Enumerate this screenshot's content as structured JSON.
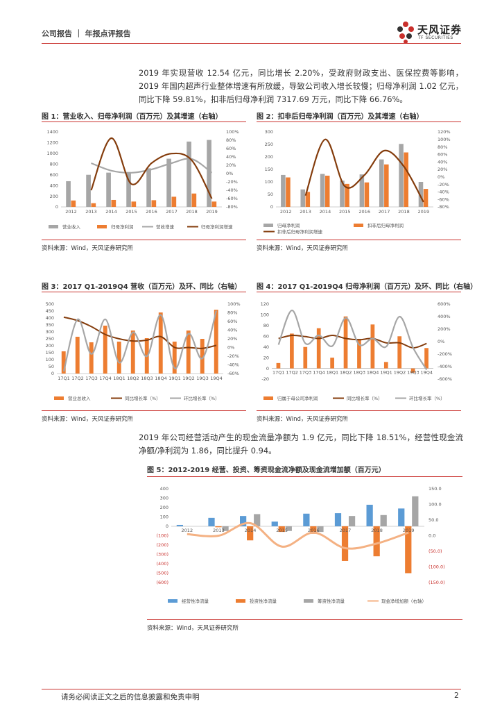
{
  "header": {
    "title": "公司报告 ｜ 年报点评报告",
    "logo_cn": "天风证券",
    "logo_en": "TF SECURITIES"
  },
  "paragraphs": {
    "p1": "2019 年实现营收 12.54 亿元，同比增长 2.20%，受政府财政支出、医保控费等影响，2019 年国内超声行业整体增速有所放缓，导致公司收入增长较慢；归母净利润 1.02 亿元，同比下降 59.81%，扣非后归母净利润 7317.69 万元，同比下降 66.76%。",
    "p2": "2019 年公司经营活动产生的现金流量净额为 1.9 亿元，同比下降 18.51%，经营性现金流净额/净利润为 1.86，同比提升 0.94。"
  },
  "figures": {
    "fig1_title": "图 1：营业收入、归母净利润（百万元）及其增速（右轴）",
    "fig2_title": "图 2：扣非后归母净利润（百万元）及其增速（右轴）",
    "fig3_title": "图 3：2017 Q1-2019Q4 营收（百万元）及环、同比（右轴）",
    "fig4_title": "图 4：2017 Q1-2019Q4 归母净利润（百万元）及环、同比（右轴）",
    "fig5_title": "图 5：2012-2019 经营、投资、筹资现金流净额及现金流增加额（百万元）",
    "source": "资料来源：Wind，天风证券研究所"
  },
  "footer": {
    "disclaimer": "请务必阅读正文之后的信息披露和免责申明",
    "page": "2"
  },
  "colors": {
    "gray": "#a6a6a6",
    "orange": "#ed7d31",
    "brown": "#843c0c",
    "blue": "#5b9bd5",
    "peach": "#f4b183",
    "red": "#c9302c"
  },
  "chart_data": [
    {
      "id": "fig1",
      "type": "bar",
      "categories": [
        "2012",
        "2013",
        "2014",
        "2015",
        "2016",
        "2017",
        "2018",
        "2019"
      ],
      "ylim": [
        0,
        1400
      ],
      "y2lim": [
        -80,
        100
      ],
      "yticks": [
        "0",
        "200",
        "400",
        "600",
        "800",
        "1000",
        "1200",
        "1400"
      ],
      "y2ticks": [
        "-80%",
        "-60%",
        "-40%",
        "-20%",
        "0%",
        "20%",
        "40%",
        "60%",
        "80%",
        "100%"
      ],
      "series": [
        {
          "name": "营业收入",
          "kind": "bar",
          "values": [
            480,
            600,
            640,
            650,
            720,
            900,
            1220,
            1250
          ]
        },
        {
          "name": "归母净利润",
          "kind": "bar",
          "values": [
            120,
            70,
            130,
            100,
            125,
            190,
            250,
            100
          ]
        },
        {
          "name": "营收增速",
          "kind": "line",
          "axis": "right",
          "values": [
            null,
            25,
            7,
            2,
            10,
            25,
            35,
            2
          ]
        },
        {
          "name": "归母净利润增速",
          "kind": "line",
          "axis": "right",
          "values": [
            null,
            -40,
            85,
            -25,
            25,
            48,
            32,
            -60
          ]
        }
      ]
    },
    {
      "id": "fig2",
      "type": "bar",
      "categories": [
        "2012",
        "2013",
        "2014",
        "2015",
        "2016",
        "2017",
        "2018",
        "2019"
      ],
      "ylim": [
        0,
        300
      ],
      "y2lim": [
        -80,
        120
      ],
      "yticks": [
        "0",
        "50",
        "100",
        "150",
        "200",
        "250",
        "300"
      ],
      "y2ticks": [
        "-80%",
        "-60%",
        "-40%",
        "-20%",
        "0%",
        "20%",
        "40%",
        "60%",
        "80%",
        "100%",
        "120%"
      ],
      "series": [
        {
          "name": "归母净利润",
          "kind": "bar",
          "values": [
            128,
            70,
            132,
            105,
            130,
            190,
            252,
            100
          ]
        },
        {
          "name": "扣非后归母净利润",
          "kind": "bar",
          "values": [
            118,
            60,
            125,
            92,
            98,
            170,
            218,
            72
          ]
        },
        {
          "name": "扣非后归母净利润增速",
          "kind": "line",
          "axis": "right",
          "values": [
            null,
            -50,
            100,
            -25,
            5,
            70,
            28,
            -67
          ]
        }
      ]
    },
    {
      "id": "fig3",
      "type": "bar",
      "categories": [
        "17Q1",
        "17Q2",
        "17Q3",
        "17Q4",
        "18Q1",
        "18Q2",
        "18Q3",
        "18Q4",
        "19Q1",
        "19Q2",
        "19Q3",
        "19Q4"
      ],
      "ylim": [
        0,
        500
      ],
      "y2lim": [
        -60,
        100
      ],
      "yticks": [
        "0",
        "50",
        "100",
        "150",
        "200",
        "250",
        "300",
        "350",
        "400",
        "450",
        "500"
      ],
      "y2ticks": [
        "-60%",
        "-40%",
        "-20%",
        "0%",
        "20%",
        "40%",
        "60%",
        "80%",
        "100%"
      ],
      "series": [
        {
          "name": "营业总收入",
          "kind": "bar",
          "values": [
            160,
            265,
            225,
            345,
            230,
            310,
            255,
            440,
            230,
            310,
            250,
            460
          ]
        },
        {
          "name": "同比增长率（%）",
          "kind": "line",
          "axis": "right",
          "values": [
            70,
            62,
            48,
            30,
            20,
            15,
            17,
            25,
            0,
            0,
            -2,
            5
          ]
        },
        {
          "name": "环比增长率（%）",
          "kind": "line",
          "axis": "right",
          "values": [
            -55,
            65,
            -15,
            65,
            -35,
            35,
            -20,
            75,
            -48,
            32,
            -25,
            85
          ]
        }
      ]
    },
    {
      "id": "fig4",
      "type": "bar",
      "categories": [
        "17Q1",
        "17Q2",
        "17Q3",
        "17Q4",
        "18Q1",
        "18Q2",
        "18Q3",
        "18Q4",
        "19Q1",
        "19Q2",
        "19Q3",
        "19Q4"
      ],
      "ylim": [
        -20,
        120
      ],
      "y2lim": [
        -600,
        600
      ],
      "yticks": [
        "-20",
        "0",
        "20",
        "40",
        "60",
        "80",
        "100",
        "120"
      ],
      "y2ticks": [
        "-600%",
        "-400%",
        "-200%",
        "0%",
        "200%",
        "400%",
        "600%"
      ],
      "series": [
        {
          "name": "归属于母公司净利润",
          "kind": "bar",
          "values": [
            10,
            65,
            40,
            75,
            20,
            97,
            55,
            82,
            12,
            60,
            -8,
            38
          ]
        },
        {
          "name": "同比增长率（%）",
          "kind": "line",
          "axis": "right",
          "values": [
            50,
            100,
            80,
            50,
            100,
            50,
            30,
            50,
            -20,
            -20,
            -100,
            -30
          ]
        },
        {
          "name": "环比增长率（%）",
          "kind": "line",
          "axis": "right",
          "values": [
            -50,
            500,
            -30,
            100,
            -70,
            380,
            -50,
            50,
            -80,
            400,
            -100,
            -450
          ]
        }
      ]
    },
    {
      "id": "fig5",
      "type": "bar",
      "categories": [
        "2012",
        "2013",
        "2014",
        "2015",
        "2016",
        "2017",
        "2018",
        "2019"
      ],
      "ylim": [
        -600,
        400
      ],
      "y2lim": [
        -150,
        150
      ],
      "yticks": [
        "(600)",
        "(500)",
        "(400)",
        "(300)",
        "(200)",
        "(100)",
        "0",
        "100",
        "200",
        "300",
        "400"
      ],
      "y2ticks": [
        "(150.0)",
        "(100.0)",
        "(50.0)",
        "0.0",
        "50.0",
        "100.0",
        "150.0"
      ],
      "series": [
        {
          "name": "经营性净流量",
          "kind": "bar",
          "values": [
            15,
            90,
            110,
            50,
            135,
            140,
            230,
            190
          ]
        },
        {
          "name": "投资性净流量",
          "kind": "bar",
          "values": [
            0,
            -10,
            -150,
            -60,
            -80,
            -370,
            -320,
            -500
          ]
        },
        {
          "name": "筹资性净流量",
          "kind": "bar",
          "values": [
            0,
            -50,
            130,
            -50,
            -60,
            110,
            120,
            320
          ]
        },
        {
          "name": "现金净增加额（右轴）",
          "kind": "line",
          "axis": "right",
          "values": [
            5,
            0,
            40,
            -35,
            10,
            -40,
            -25,
            10
          ]
        }
      ]
    }
  ]
}
